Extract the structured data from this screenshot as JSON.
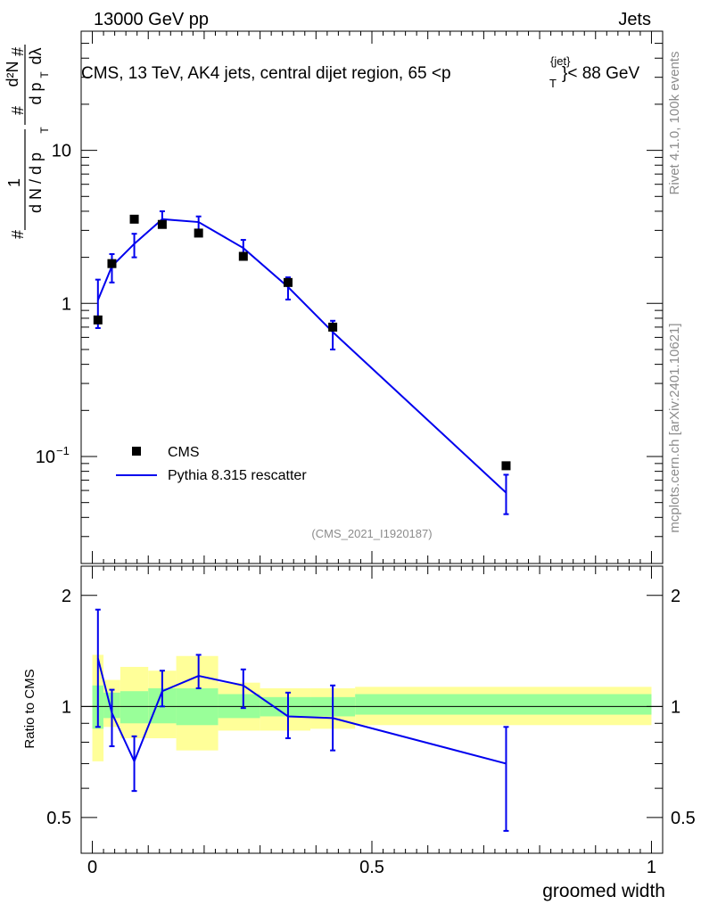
{
  "header": {
    "left": "13000 GeV pp",
    "right": "Jets"
  },
  "side_text": {
    "rivet": "Rivet 4.1.0,  100k events",
    "mcplots": "mcplots.cern.ch [arXiv:2401.10621]"
  },
  "colors": {
    "mc_line": "#0000ee",
    "band_outer": "#ffff99",
    "band_inner": "#99ff99"
  },
  "chart_data": [
    {
      "type": "line",
      "title": "CMS, 13 TeV, AK4 jets, central dijet region, 65 < p_T^{jet} < 88 GeV",
      "title_parts": {
        "main": "CMS, 13 TeV, AK4 jets, central dijet region, 65 <p",
        "sup": "{jet}",
        "sub": "T",
        "end": "}< 88 GeV"
      },
      "ylabel_parts": {
        "hash": "#",
        "one": "1",
        "dn_dpt": "d N / d p",
        "t": "T",
        "d2n": "d²N",
        "dpt_dl": "d p",
        "dl": "dλ"
      },
      "yscale": "log",
      "ylim": [
        0.02,
        60
      ],
      "xlim": [
        -0.02,
        1.02
      ],
      "ytick_labels": [
        {
          "value": 0.1,
          "label": "10",
          "exp": "−1"
        },
        {
          "value": 1,
          "label": "1",
          "exp": ""
        },
        {
          "value": 10,
          "label": "10",
          "exp": ""
        }
      ],
      "legend": [
        {
          "name": "CMS",
          "marker": "square"
        },
        {
          "name": "Pythia 8.315 rescatter",
          "marker": "line"
        }
      ],
      "watermark": "(CMS_2021_I1920187)",
      "data_series": {
        "name": "CMS",
        "x": [
          0.01,
          0.035,
          0.075,
          0.125,
          0.19,
          0.27,
          0.35,
          0.43,
          0.74
        ],
        "y": [
          0.78,
          1.82,
          3.55,
          3.28,
          2.88,
          2.03,
          1.37,
          0.7,
          0.087
        ]
      },
      "mc_series": {
        "name": "Pythia 8.315 rescatter",
        "x": [
          0.01,
          0.035,
          0.075,
          0.125,
          0.19,
          0.27,
          0.35,
          0.43,
          0.74
        ],
        "y": [
          1.05,
          1.75,
          2.45,
          3.55,
          3.4,
          2.3,
          1.28,
          0.65,
          0.058
        ],
        "yerr_low": [
          0.36,
          0.38,
          0.45,
          0.35,
          0.4,
          0.3,
          0.22,
          0.15,
          0.016
        ],
        "yerr_high": [
          0.38,
          0.35,
          0.4,
          0.45,
          0.3,
          0.3,
          0.2,
          0.12,
          0.018
        ]
      }
    },
    {
      "type": "line",
      "ylabel": "Ratio to CMS",
      "xlabel": "groomed width",
      "yscale": "log",
      "ylim": [
        0.4,
        2.4
      ],
      "xlim": [
        -0.02,
        1.02
      ],
      "ytick_labels": [
        {
          "value": 0.5,
          "label": "0.5"
        },
        {
          "value": 1,
          "label": "1"
        },
        {
          "value": 2,
          "label": "2"
        }
      ],
      "xtick_labels": [
        {
          "value": 0,
          "label": "0"
        },
        {
          "value": 0.5,
          "label": "0.5"
        },
        {
          "value": 1,
          "label": "1"
        }
      ],
      "bands": [
        {
          "x0": 0.0,
          "x1": 0.02,
          "outer": [
            0.71,
            1.38
          ],
          "inner": [
            0.87,
            1.14
          ]
        },
        {
          "x0": 0.02,
          "x1": 0.05,
          "outer": [
            0.88,
            1.18
          ],
          "inner": [
            0.93,
            1.09
          ]
        },
        {
          "x0": 0.05,
          "x1": 0.1,
          "outer": [
            0.82,
            1.28
          ],
          "inner": [
            0.9,
            1.1
          ]
        },
        {
          "x0": 0.1,
          "x1": 0.15,
          "outer": [
            0.82,
            1.25
          ],
          "inner": [
            0.9,
            1.12
          ]
        },
        {
          "x0": 0.15,
          "x1": 0.225,
          "outer": [
            0.76,
            1.37
          ],
          "inner": [
            0.89,
            1.12
          ]
        },
        {
          "x0": 0.225,
          "x1": 0.3,
          "outer": [
            0.86,
            1.16
          ],
          "inner": [
            0.93,
            1.08
          ]
        },
        {
          "x0": 0.3,
          "x1": 0.39,
          "outer": [
            0.86,
            1.12
          ],
          "inner": [
            0.94,
            1.06
          ]
        },
        {
          "x0": 0.39,
          "x1": 0.47,
          "outer": [
            0.87,
            1.12
          ],
          "inner": [
            0.94,
            1.06
          ]
        },
        {
          "x0": 0.47,
          "x1": 1.0,
          "outer": [
            0.89,
            1.13
          ],
          "inner": [
            0.95,
            1.08
          ]
        }
      ],
      "ratio_series": {
        "name": "Pythia 8.315 rescatter",
        "x": [
          0.01,
          0.035,
          0.075,
          0.125,
          0.19,
          0.27,
          0.35,
          0.43,
          0.74
        ],
        "y": [
          1.35,
          0.96,
          0.71,
          1.1,
          1.21,
          1.14,
          0.94,
          0.93,
          0.7
        ],
        "err_low": [
          0.47,
          0.18,
          0.12,
          0.1,
          0.09,
          0.15,
          0.12,
          0.17,
          0.24
        ],
        "err_high": [
          0.48,
          0.15,
          0.12,
          0.15,
          0.17,
          0.12,
          0.15,
          0.21,
          0.18
        ]
      }
    }
  ]
}
